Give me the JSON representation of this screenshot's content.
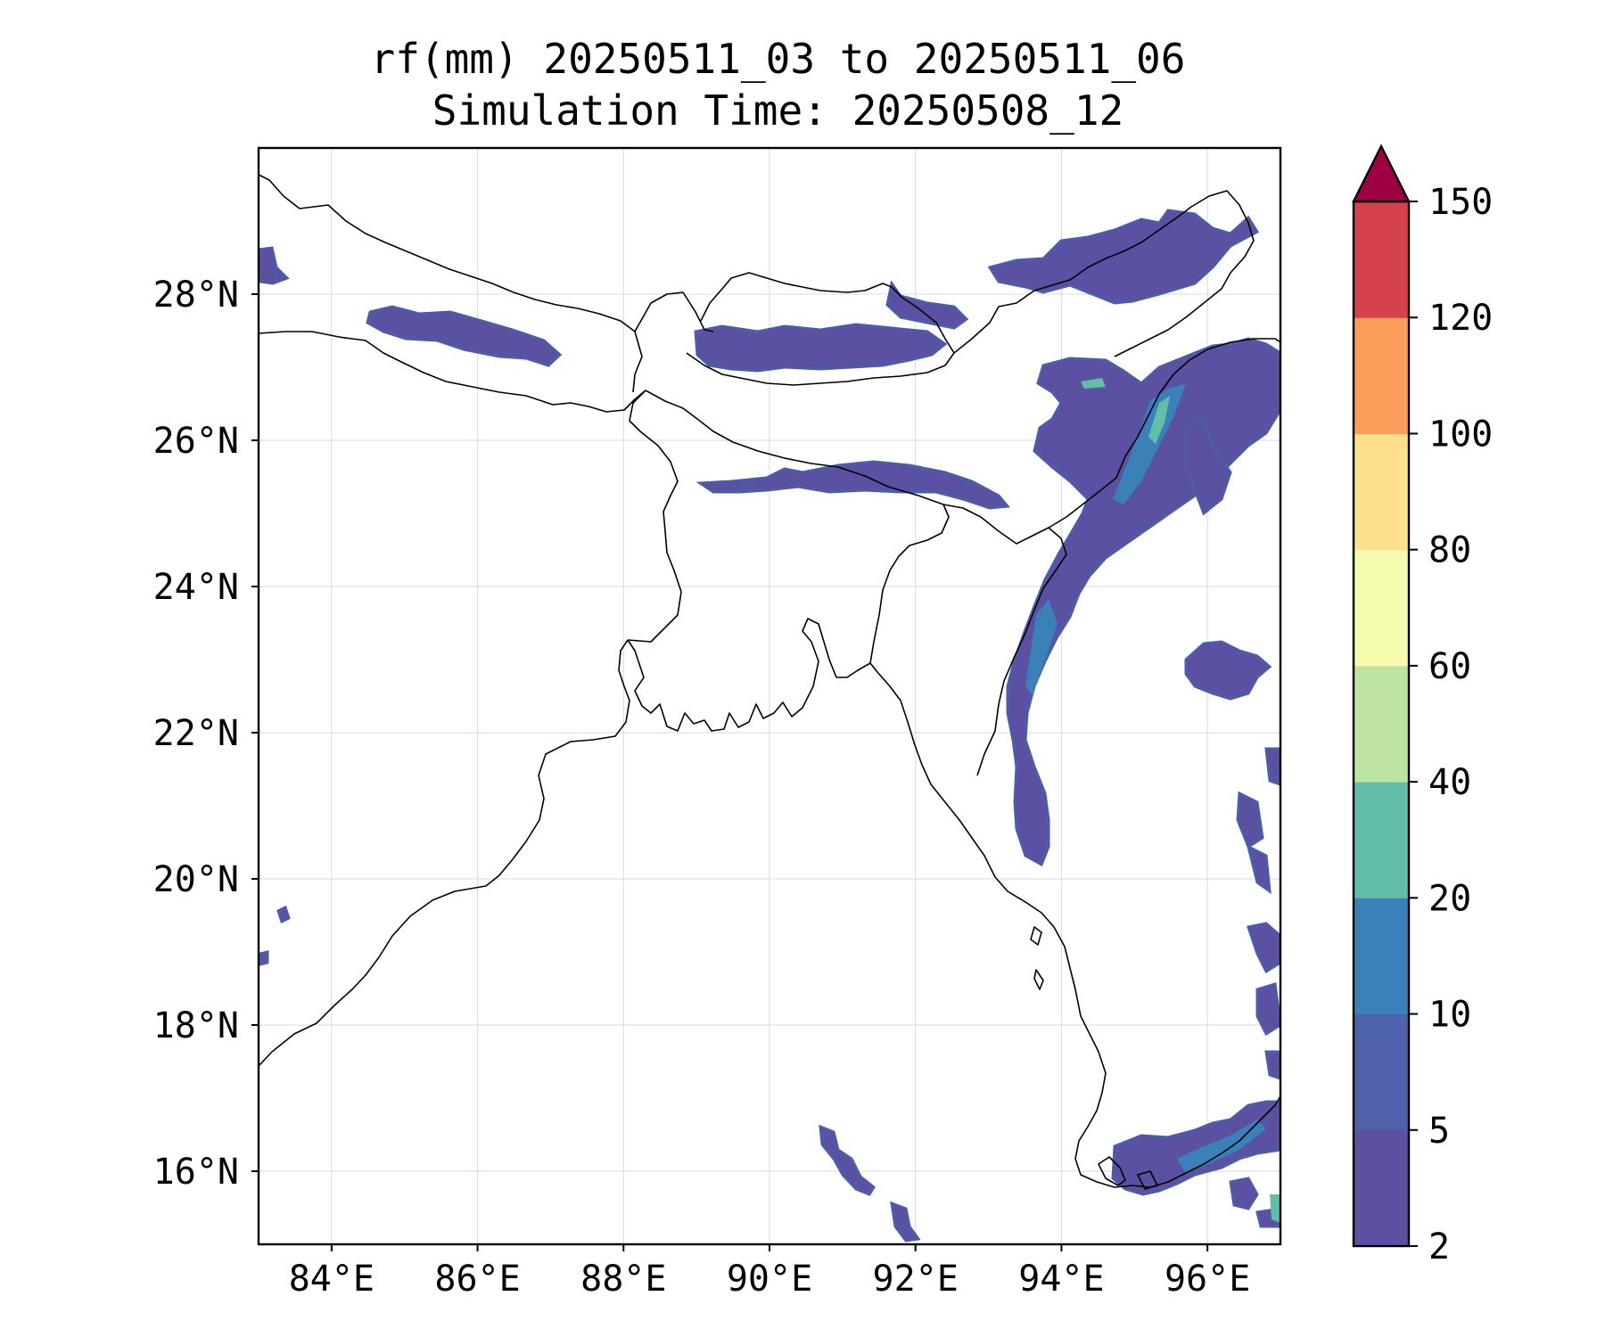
{
  "title": {
    "line1": "rf(mm) 20250511_03 to 20250511_06",
    "line2": "Simulation Time: 20250508_12"
  },
  "map": {
    "lon_range": [
      83.0,
      97.0
    ],
    "lat_range": [
      15.0,
      30.0
    ],
    "lon_ticks": [
      84,
      86,
      88,
      90,
      92,
      94,
      96
    ],
    "lat_ticks": [
      16,
      18,
      20,
      22,
      24,
      26,
      28
    ],
    "lon_tick_labels": [
      "84°E",
      "86°E",
      "88°E",
      "90°E",
      "92°E",
      "94°E",
      "96°E"
    ],
    "lat_tick_labels": [
      "16°N",
      "18°N",
      "20°N",
      "22°N",
      "24°N",
      "26°N",
      "28°N"
    ],
    "grid": true,
    "coastline_color": "#000000",
    "rain_color_low": "#5b51a3"
  },
  "colorbar": {
    "levels": [
      2,
      5,
      10,
      20,
      40,
      60,
      80,
      100,
      120,
      150
    ],
    "labels": [
      "2",
      "5",
      "10",
      "20",
      "40",
      "60",
      "80",
      "100",
      "120",
      "150"
    ],
    "colors": [
      "#5e4fa2",
      "#4f61aa",
      "#3a81b9",
      "#62bda9",
      "#bde3a0",
      "#f4fbad",
      "#fde08b",
      "#f99d59",
      "#d6414e"
    ],
    "extend_color": "#9e0142",
    "extend": "max"
  }
}
